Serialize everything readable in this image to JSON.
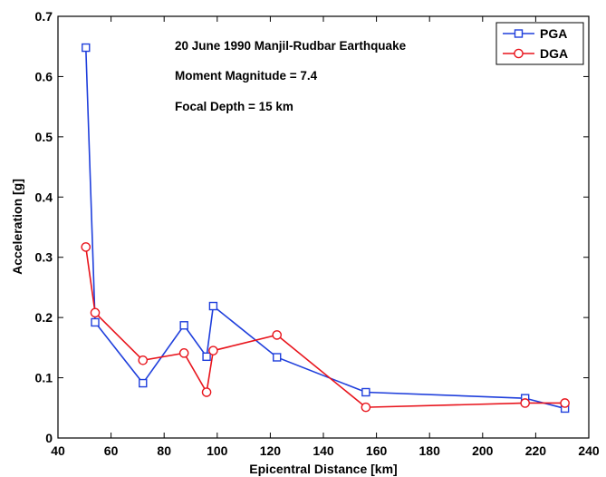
{
  "chart_data": {
    "type": "line",
    "xlabel": "Epicentral Distance [km]",
    "ylabel": "Acceleration [g]",
    "xlim": [
      40,
      240
    ],
    "ylim": [
      0,
      0.7
    ],
    "xticks": [
      40,
      60,
      80,
      100,
      120,
      140,
      160,
      180,
      200,
      220,
      240
    ],
    "yticks": [
      0,
      0.1,
      0.2,
      0.3,
      0.4,
      0.5,
      0.6,
      0.7
    ],
    "xtick_labels": [
      "40",
      "60",
      "80",
      "100",
      "120",
      "140",
      "160",
      "180",
      "200",
      "220",
      "240"
    ],
    "ytick_labels": [
      "0",
      "0.1",
      "0.2",
      "0.3",
      "0.4",
      "0.5",
      "0.6",
      "0.7"
    ],
    "grid": false,
    "legend_position": "top-right",
    "annotations": [
      "20 June 1990 Manjil-Rudbar Earthquake",
      "Moment Magnitude = 7.4",
      "Focal Depth = 15 km"
    ],
    "series": [
      {
        "name": "PGA",
        "color": "#1f3fdc",
        "marker": "square",
        "x": [
          50.5,
          54,
          72,
          87.5,
          96,
          98.5,
          122.5,
          156,
          216,
          231
        ],
        "y": [
          0.648,
          0.192,
          0.091,
          0.187,
          0.135,
          0.219,
          0.134,
          0.076,
          0.066,
          0.049
        ]
      },
      {
        "name": "DGA",
        "color": "#e8141c",
        "marker": "circle",
        "x": [
          50.5,
          54,
          72,
          87.5,
          96,
          98.5,
          122.5,
          156,
          216,
          231
        ],
        "y": [
          0.317,
          0.208,
          0.129,
          0.141,
          0.076,
          0.145,
          0.171,
          0.051,
          0.058,
          0.058
        ]
      }
    ]
  }
}
